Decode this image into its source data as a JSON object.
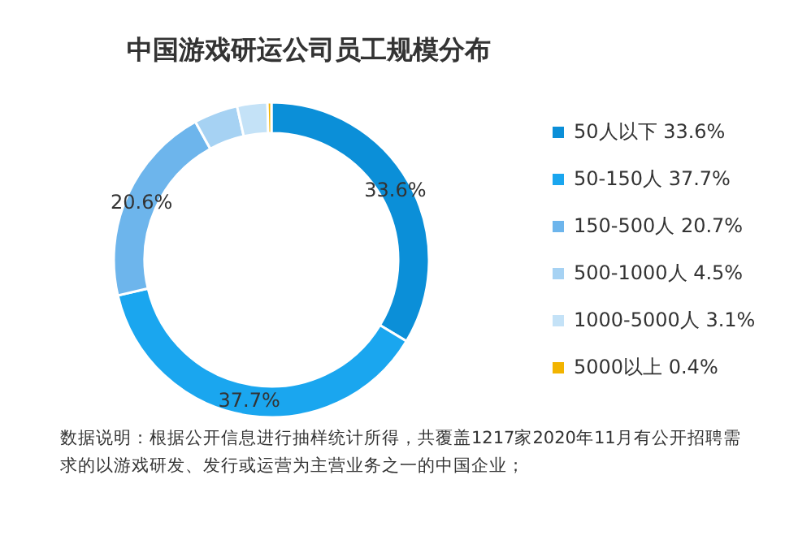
{
  "chart_data": {
    "type": "donut",
    "title": "中国游戏研运公司员工规模分布",
    "categories": [
      "50人以下 33.6%",
      "50-150人 37.7%",
      "150-500人 20.7%",
      "500-1000人 4.5%",
      "1000-5000人 3.1%",
      "5000以上 0.4%"
    ],
    "values": [
      33.6,
      37.7,
      20.6,
      4.5,
      3.1,
      0.4
    ],
    "value_labels": [
      "33.6%",
      "37.7%",
      "20.6%",
      null,
      null,
      null
    ],
    "colors": [
      "#0b8fd8",
      "#1aa6ef",
      "#6db5ec",
      "#a6d2f3",
      "#c4e2f7",
      "#f2b400"
    ],
    "legend": "right",
    "annotations": [
      "数据说明：根据公开信息进行抽样统计所得，共覆盖1217家2020年11月有公开招聘需求的以游戏研发、发行或运营为主营业务之一的中国企业；"
    ]
  }
}
